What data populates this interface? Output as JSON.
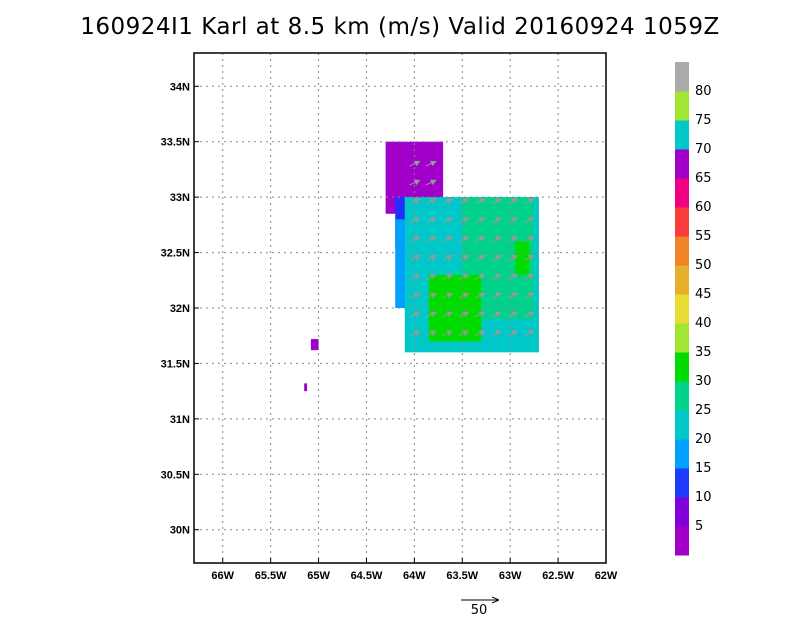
{
  "title": "160924I1 Karl at 8.5 km (m/s) Valid 20160924 1059Z",
  "map": {
    "lon_range": [
      -66.3,
      -62.0
    ],
    "lat_range": [
      29.7,
      34.3
    ],
    "lon_ticks": [
      -66,
      -65.5,
      -65,
      -64.5,
      -64,
      -63.5,
      -63,
      -62.5,
      -62
    ],
    "lon_tick_labels": [
      "66W",
      "65.5W",
      "65W",
      "64.5W",
      "64W",
      "63.5W",
      "63W",
      "62.5W",
      "62W"
    ],
    "lat_ticks": [
      30,
      30.5,
      31,
      31.5,
      32,
      32.5,
      33,
      33.5,
      34
    ],
    "lat_tick_labels": [
      "30N",
      "30.5N",
      "31N",
      "31.5N",
      "32N",
      "32.5N",
      "33N",
      "33.5N",
      "34N"
    ],
    "grid": "dotted"
  },
  "colorbar": {
    "labels": [
      "5",
      "10",
      "15",
      "20",
      "25",
      "30",
      "35",
      "40",
      "45",
      "50",
      "55",
      "60",
      "65",
      "70",
      "75",
      "80"
    ],
    "colors": [
      "#a000c8",
      "#8200dc",
      "#1e3cff",
      "#00a0ff",
      "#00c8c8",
      "#00d28c",
      "#00dc00",
      "#a0e632",
      "#e6dc32",
      "#e6af2d",
      "#f08228",
      "#fa3c3c",
      "#f00082",
      "#a000c8",
      "#00c8c8",
      "#a0e632",
      "#aaaaaa"
    ]
  },
  "chart_data": {
    "type": "heatmap",
    "variable": "wind speed",
    "units": "m/s",
    "level": "8.5 km",
    "storm": "Karl",
    "valid_time": "20160924 1059Z",
    "reference_vector": {
      "value": 50,
      "label": "50"
    },
    "regions": [
      {
        "speed_class": "0-10",
        "color": "#a000c8",
        "lon_range": [
          -64.3,
          -63.7
        ],
        "lat_range": [
          32.85,
          33.5
        ]
      },
      {
        "speed_class": "5-15",
        "color": "#2030ff",
        "lon_range": [
          -64.2,
          -63.6
        ],
        "lat_range": [
          32.55,
          33.0
        ]
      },
      {
        "speed_class": "15-20",
        "color": "#00a0ff",
        "lon_range": [
          -64.2,
          -63.4
        ],
        "lat_range": [
          32.0,
          32.8
        ]
      },
      {
        "speed_class": "20-25",
        "color": "#00c8c8",
        "lon_range": [
          -64.1,
          -62.7
        ],
        "lat_range": [
          31.6,
          33.0
        ]
      },
      {
        "speed_class": "25-30",
        "color": "#00d28c",
        "lon_range": [
          -63.5,
          -62.75
        ],
        "lat_range": [
          31.9,
          33.0
        ]
      },
      {
        "speed_class": "30-35",
        "color": "#00dc00",
        "lon_range": [
          -63.85,
          -63.3
        ],
        "lat_range": [
          31.7,
          32.3
        ]
      },
      {
        "speed_class": "30-35",
        "color": "#00dc00",
        "lon_range": [
          -62.95,
          -62.8
        ],
        "lat_range": [
          32.3,
          32.6
        ]
      },
      {
        "speed_class": "0-10",
        "color": "#a000c8",
        "lon_range": [
          -65.08,
          -65.0
        ],
        "lat_range": [
          31.62,
          31.72
        ]
      },
      {
        "speed_class": "0-10",
        "color": "#a000c8",
        "lon_range": [
          -65.15,
          -65.12
        ],
        "lat_range": [
          31.25,
          31.32
        ]
      }
    ]
  }
}
